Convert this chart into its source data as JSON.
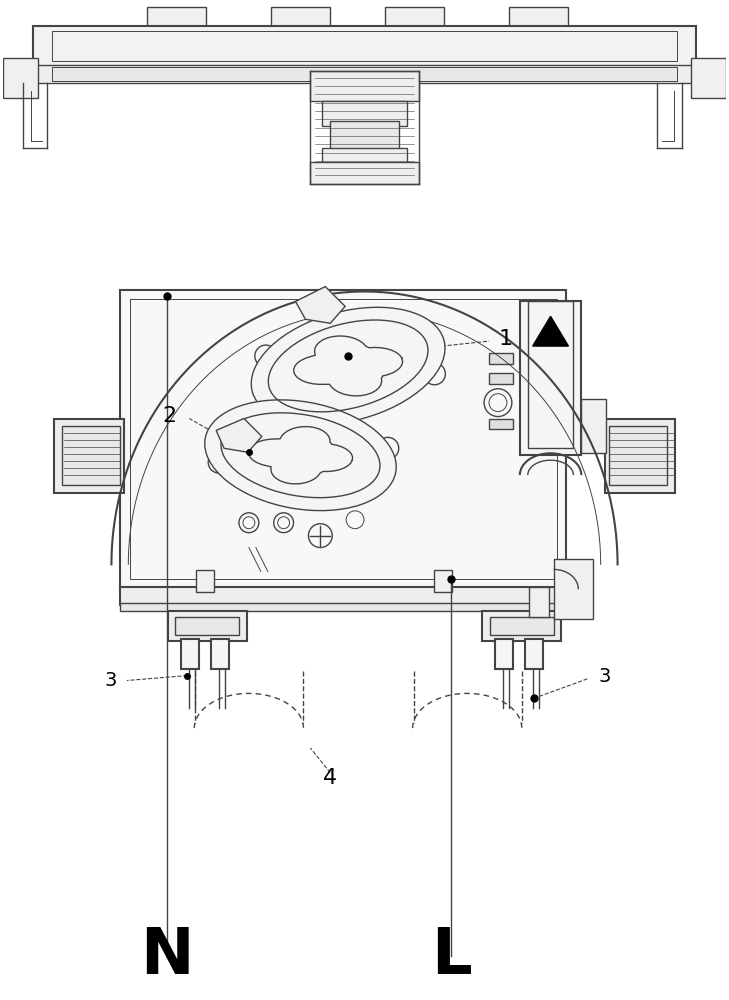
{
  "bg_color": "#ffffff",
  "lc": "#444444",
  "lc2": "#222222",
  "lw": 1.0,
  "lw2": 1.5,
  "lw3": 0.7
}
